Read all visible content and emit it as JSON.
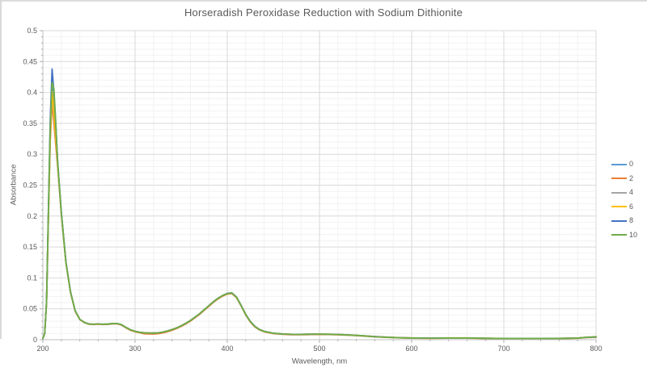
{
  "title": "Horseradish Peroxidase Reduction with Sodium Dithionite",
  "axes": {
    "x_label": "Wavelength, nm",
    "y_label": "Absorbance",
    "x_tick_labels": [
      "200",
      "300",
      "400",
      "500",
      "600",
      "700",
      "800"
    ],
    "y_tick_labels": [
      "0",
      "0.05",
      "0.1",
      "0.15",
      "0.2",
      "0.25",
      "0.3",
      "0.35",
      "0.4",
      "0.45",
      "0.5"
    ]
  },
  "legend": {
    "position": "right",
    "entries": [
      "0",
      "2",
      "4",
      "6",
      "8",
      "10"
    ]
  },
  "colors": {
    "text": "#595959",
    "grid_major": "#d9d9d9",
    "grid_minor": "#f2f2f2",
    "axis_line": "#bfbfbf",
    "tick": "#adadad",
    "series": [
      "#5B9BD5",
      "#ED7D31",
      "#A5A5A5",
      "#FFC000",
      "#4472C4",
      "#70AD47"
    ]
  },
  "chart_data": {
    "type": "line",
    "title": "Horseradish Peroxidase Reduction with Sodium Dithionite",
    "xlabel": "Wavelength, nm",
    "ylabel": "Absorbance",
    "xlim": [
      200,
      800
    ],
    "ylim": [
      0,
      0.5
    ],
    "x_major_step": 100,
    "x_minor_step": 20,
    "y_major_step": 0.05,
    "y_minor_step": 0.01,
    "grid": "major+minor",
    "legend_position": "right",
    "x": [
      200,
      202,
      204,
      206,
      208,
      210,
      212,
      214,
      216,
      218,
      220,
      225,
      230,
      235,
      240,
      245,
      250,
      255,
      260,
      265,
      270,
      275,
      280,
      285,
      290,
      295,
      300,
      305,
      310,
      315,
      320,
      325,
      330,
      335,
      340,
      345,
      350,
      355,
      360,
      365,
      370,
      375,
      380,
      385,
      390,
      395,
      400,
      405,
      410,
      415,
      420,
      425,
      430,
      435,
      440,
      450,
      460,
      470,
      480,
      490,
      500,
      510,
      520,
      530,
      540,
      550,
      560,
      570,
      580,
      590,
      600,
      620,
      640,
      660,
      680,
      700,
      720,
      740,
      760,
      780,
      790,
      800
    ],
    "series": [
      {
        "name": "0",
        "color": "#5B9BD5",
        "values": [
          0.002,
          0.01,
          0.06,
          0.2,
          0.335,
          0.408,
          0.372,
          0.33,
          0.285,
          0.245,
          0.205,
          0.125,
          0.077,
          0.047,
          0.033,
          0.028,
          0.0255,
          0.025,
          0.0255,
          0.025,
          0.0252,
          0.026,
          0.0262,
          0.0245,
          0.02,
          0.016,
          0.0135,
          0.012,
          0.011,
          0.0108,
          0.0107,
          0.011,
          0.0122,
          0.014,
          0.0163,
          0.019,
          0.0225,
          0.0265,
          0.031,
          0.0365,
          0.042,
          0.0485,
          0.055,
          0.0615,
          0.067,
          0.0715,
          0.0745,
          0.0755,
          0.069,
          0.0555,
          0.041,
          0.0295,
          0.0215,
          0.0165,
          0.0135,
          0.0105,
          0.0092,
          0.0087,
          0.0086,
          0.0089,
          0.009,
          0.0088,
          0.0084,
          0.0078,
          0.007,
          0.006,
          0.005,
          0.0042,
          0.0036,
          0.0031,
          0.0028,
          0.0025,
          0.0028,
          0.0028,
          0.0023,
          0.002,
          0.002,
          0.002,
          0.0021,
          0.0026,
          0.0038,
          0.0042
        ]
      },
      {
        "name": "2",
        "color": "#ED7D31",
        "values": [
          0.002,
          0.01,
          0.06,
          0.195,
          0.32,
          0.385,
          0.35,
          0.315,
          0.28,
          0.242,
          0.203,
          0.124,
          0.076,
          0.046,
          0.0325,
          0.0275,
          0.025,
          0.0245,
          0.025,
          0.0245,
          0.0247,
          0.0255,
          0.0257,
          0.0238,
          0.0192,
          0.0152,
          0.0128,
          0.0112,
          0.0095,
          0.0093,
          0.0092,
          0.0096,
          0.011,
          0.0128,
          0.0152,
          0.018,
          0.0215,
          0.0255,
          0.03,
          0.0355,
          0.041,
          0.0475,
          0.054,
          0.0605,
          0.066,
          0.0705,
          0.0738,
          0.0746,
          0.068,
          0.0545,
          0.04,
          0.0285,
          0.0205,
          0.0157,
          0.0128,
          0.0098,
          0.0086,
          0.0081,
          0.008,
          0.0083,
          0.0085,
          0.0083,
          0.0079,
          0.0073,
          0.0065,
          0.0056,
          0.0046,
          0.0039,
          0.0033,
          0.0028,
          0.0025,
          0.0022,
          0.0025,
          0.0025,
          0.002,
          0.0018,
          0.0018,
          0.0018,
          0.0019,
          0.0023,
          0.0034,
          0.0038
        ]
      },
      {
        "name": "4",
        "color": "#A5A5A5",
        "values": [
          0.002,
          0.01,
          0.06,
          0.2,
          0.33,
          0.397,
          0.362,
          0.325,
          0.284,
          0.244,
          0.204,
          0.125,
          0.077,
          0.047,
          0.033,
          0.028,
          0.0255,
          0.025,
          0.0255,
          0.025,
          0.0252,
          0.026,
          0.0262,
          0.0245,
          0.02,
          0.016,
          0.0135,
          0.012,
          0.011,
          0.0108,
          0.0107,
          0.011,
          0.0122,
          0.014,
          0.0163,
          0.019,
          0.0225,
          0.0265,
          0.031,
          0.0365,
          0.042,
          0.0485,
          0.055,
          0.0615,
          0.067,
          0.0715,
          0.0748,
          0.0758,
          0.0692,
          0.0555,
          0.041,
          0.0295,
          0.0215,
          0.0165,
          0.0135,
          0.0105,
          0.0092,
          0.0087,
          0.0086,
          0.0089,
          0.009,
          0.0088,
          0.0084,
          0.0078,
          0.007,
          0.006,
          0.005,
          0.0042,
          0.0036,
          0.0031,
          0.0028,
          0.0025,
          0.0028,
          0.0028,
          0.0023,
          0.002,
          0.002,
          0.002,
          0.0021,
          0.0026,
          0.0038,
          0.0042
        ]
      },
      {
        "name": "6",
        "color": "#FFC000",
        "values": [
          0.002,
          0.01,
          0.06,
          0.2,
          0.333,
          0.402,
          0.368,
          0.328,
          0.285,
          0.245,
          0.205,
          0.125,
          0.077,
          0.047,
          0.033,
          0.028,
          0.0255,
          0.025,
          0.0255,
          0.025,
          0.0252,
          0.026,
          0.0262,
          0.0245,
          0.02,
          0.016,
          0.0135,
          0.012,
          0.011,
          0.0108,
          0.0107,
          0.011,
          0.0122,
          0.014,
          0.0163,
          0.019,
          0.0225,
          0.0265,
          0.031,
          0.0365,
          0.042,
          0.0485,
          0.055,
          0.0615,
          0.067,
          0.0715,
          0.0745,
          0.0755,
          0.069,
          0.0555,
          0.041,
          0.0295,
          0.0215,
          0.0165,
          0.0135,
          0.0105,
          0.0093,
          0.0088,
          0.0087,
          0.009,
          0.0091,
          0.0089,
          0.0085,
          0.0079,
          0.0071,
          0.0061,
          0.0051,
          0.0043,
          0.0037,
          0.0032,
          0.0029,
          0.0026,
          0.0029,
          0.0029,
          0.0024,
          0.0021,
          0.0021,
          0.0021,
          0.0022,
          0.0027,
          0.0039,
          0.0043
        ]
      },
      {
        "name": "8",
        "color": "#4472C4",
        "values": [
          0.002,
          0.01,
          0.062,
          0.21,
          0.355,
          0.438,
          0.4,
          0.35,
          0.29,
          0.248,
          0.207,
          0.126,
          0.0775,
          0.047,
          0.033,
          0.028,
          0.0255,
          0.025,
          0.0255,
          0.025,
          0.0252,
          0.026,
          0.0262,
          0.0245,
          0.02,
          0.016,
          0.0135,
          0.012,
          0.011,
          0.0108,
          0.0107,
          0.011,
          0.0122,
          0.014,
          0.0163,
          0.019,
          0.0225,
          0.0265,
          0.031,
          0.0365,
          0.042,
          0.0485,
          0.055,
          0.0615,
          0.067,
          0.0715,
          0.0748,
          0.0757,
          0.069,
          0.0555,
          0.041,
          0.0295,
          0.0215,
          0.0165,
          0.0135,
          0.0105,
          0.0092,
          0.0087,
          0.0086,
          0.0089,
          0.009,
          0.0088,
          0.0084,
          0.0078,
          0.007,
          0.006,
          0.005,
          0.0042,
          0.0036,
          0.0031,
          0.0028,
          0.0025,
          0.0028,
          0.0028,
          0.0023,
          0.002,
          0.002,
          0.002,
          0.0021,
          0.0026,
          0.0038,
          0.0042
        ]
      },
      {
        "name": "10",
        "color": "#70AD47",
        "values": [
          0.002,
          0.01,
          0.061,
          0.205,
          0.345,
          0.416,
          0.406,
          0.35,
          0.288,
          0.246,
          0.206,
          0.125,
          0.077,
          0.047,
          0.033,
          0.028,
          0.0255,
          0.025,
          0.0255,
          0.025,
          0.0252,
          0.026,
          0.0262,
          0.0245,
          0.02,
          0.016,
          0.0135,
          0.012,
          0.011,
          0.0108,
          0.0107,
          0.011,
          0.0122,
          0.014,
          0.0163,
          0.019,
          0.0225,
          0.0265,
          0.031,
          0.0365,
          0.042,
          0.0485,
          0.055,
          0.0615,
          0.067,
          0.0715,
          0.0745,
          0.0753,
          0.0688,
          0.0553,
          0.0408,
          0.0293,
          0.0213,
          0.0163,
          0.0133,
          0.0104,
          0.0091,
          0.0086,
          0.0085,
          0.0088,
          0.0089,
          0.0087,
          0.0083,
          0.0077,
          0.0069,
          0.0059,
          0.0049,
          0.0041,
          0.0035,
          0.003,
          0.0027,
          0.0024,
          0.0027,
          0.0027,
          0.0022,
          0.0019,
          0.0019,
          0.0019,
          0.002,
          0.0025,
          0.004,
          0.0048
        ]
      }
    ]
  }
}
